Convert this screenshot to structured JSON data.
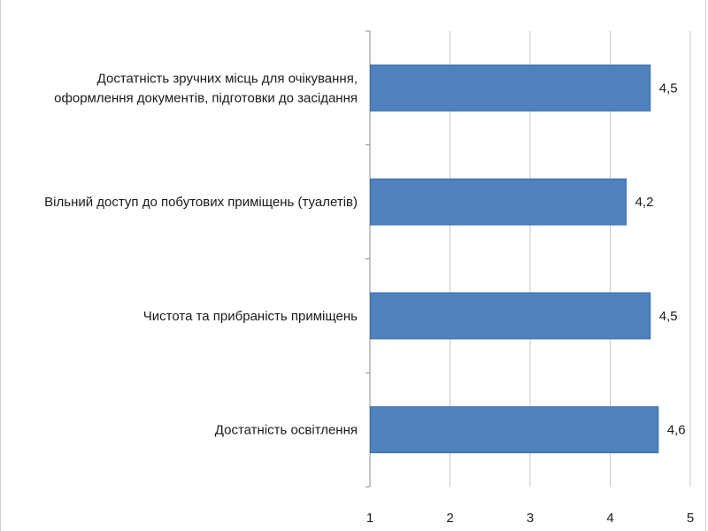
{
  "chart_data": {
    "type": "bar",
    "orientation": "horizontal",
    "categories": [
      [
        "Достатність зручних місць для очікування,",
        "оформлення документів, підготовки до засідання"
      ],
      [
        "Вільний доступ до побутових приміщень (туалетів)"
      ],
      [
        "Чистота та прибраність приміщень"
      ],
      [
        "Достатність освітлення"
      ]
    ],
    "values": [
      4.5,
      4.2,
      4.5,
      4.6
    ],
    "data_labels": [
      "4,5",
      "4,2",
      "4,5",
      "4,6"
    ],
    "xlim": [
      1,
      5
    ],
    "xticks": [
      1,
      2,
      3,
      4,
      5
    ],
    "xtick_labels": [
      "1",
      "2",
      "3",
      "4",
      "5"
    ],
    "grid": true,
    "bar_color": "#4f81bd",
    "bar_border_color": "#3a6ea5",
    "grid_color": "#c8c8c8",
    "axis_color": "#8c8c8c",
    "title": "",
    "xlabel": "",
    "ylabel": ""
  }
}
